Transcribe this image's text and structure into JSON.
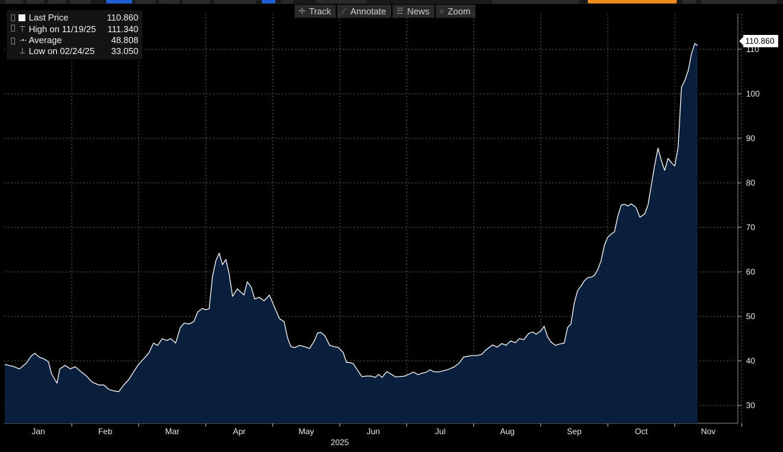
{
  "toolbar": {
    "track_label": "Track",
    "annotate_label": "Annotate",
    "news_label": "News",
    "zoom_label": "Zoom"
  },
  "legend": {
    "last_price_label": "Last Price",
    "last_price_value": "110.860",
    "high_label": "High on 11/19/25",
    "high_value": "111.340",
    "average_label": "Average",
    "average_value": "48.808",
    "low_label": "Low on 02/24/25",
    "low_value": "33.050"
  },
  "last_tag": "110.860",
  "colors": {
    "background": "#000000",
    "area_fill": "#0a1f3c",
    "line": "#ffffff",
    "grid": "#5a5a5a"
  },
  "chart_data": {
    "type": "area",
    "year_label": "2025",
    "x_tick_labels": [
      "Jan",
      "Feb",
      "Mar",
      "Apr",
      "May",
      "Jun",
      "Jul",
      "Aug",
      "Sep",
      "Oct",
      "Nov"
    ],
    "y_tick_labels": [
      "30",
      "40",
      "50",
      "60",
      "70",
      "80",
      "90",
      "100",
      "110"
    ],
    "y_ticks": [
      30,
      40,
      50,
      60,
      70,
      80,
      90,
      100,
      110
    ],
    "ylim": [
      26,
      118
    ],
    "x_range": [
      0,
      10.85
    ],
    "grid": true,
    "series": [
      {
        "name": "Last Price",
        "points": [
          [
            0.0,
            39.2
          ],
          [
            0.12,
            38.8
          ],
          [
            0.22,
            38.2
          ],
          [
            0.32,
            39.5
          ],
          [
            0.4,
            41.2
          ],
          [
            0.45,
            41.7
          ],
          [
            0.52,
            40.8
          ],
          [
            0.58,
            40.5
          ],
          [
            0.65,
            39.8
          ],
          [
            0.7,
            37.0
          ],
          [
            0.78,
            35.0
          ],
          [
            0.82,
            38.2
          ],
          [
            0.9,
            39.0
          ],
          [
            0.98,
            38.2
          ],
          [
            1.05,
            38.7
          ],
          [
            1.12,
            37.8
          ],
          [
            1.22,
            36.6
          ],
          [
            1.3,
            35.3
          ],
          [
            1.4,
            34.6
          ],
          [
            1.48,
            34.6
          ],
          [
            1.55,
            33.6
          ],
          [
            1.62,
            33.3
          ],
          [
            1.7,
            33.1
          ],
          [
            1.77,
            34.5
          ],
          [
            1.85,
            35.8
          ],
          [
            1.92,
            37.5
          ],
          [
            2.0,
            39.3
          ],
          [
            2.08,
            40.6
          ],
          [
            2.15,
            41.8
          ],
          [
            2.22,
            44.0
          ],
          [
            2.28,
            43.5
          ],
          [
            2.35,
            45.0
          ],
          [
            2.42,
            44.6
          ],
          [
            2.48,
            45.0
          ],
          [
            2.55,
            44.0
          ],
          [
            2.62,
            47.5
          ],
          [
            2.68,
            48.5
          ],
          [
            2.75,
            48.3
          ],
          [
            2.82,
            48.8
          ],
          [
            2.88,
            51.0
          ],
          [
            2.95,
            51.8
          ],
          [
            3.0,
            51.5
          ],
          [
            3.05,
            51.7
          ],
          [
            3.1,
            59.0
          ],
          [
            3.15,
            62.5
          ],
          [
            3.2,
            64.2
          ],
          [
            3.25,
            61.6
          ],
          [
            3.3,
            62.8
          ],
          [
            3.35,
            59.5
          ],
          [
            3.4,
            54.5
          ],
          [
            3.47,
            56.2
          ],
          [
            3.52,
            55.5
          ],
          [
            3.57,
            54.8
          ],
          [
            3.62,
            57.8
          ],
          [
            3.68,
            56.5
          ],
          [
            3.73,
            53.9
          ],
          [
            3.8,
            54.3
          ],
          [
            3.87,
            53.5
          ],
          [
            3.95,
            54.8
          ],
          [
            4.0,
            53.0
          ],
          [
            4.05,
            51.2
          ],
          [
            4.1,
            49.5
          ],
          [
            4.17,
            48.8
          ],
          [
            4.22,
            45.2
          ],
          [
            4.27,
            43.2
          ],
          [
            4.33,
            43.0
          ],
          [
            4.4,
            43.5
          ],
          [
            4.47,
            43.2
          ],
          [
            4.55,
            42.8
          ],
          [
            4.62,
            44.5
          ],
          [
            4.67,
            46.3
          ],
          [
            4.72,
            46.4
          ],
          [
            4.78,
            45.6
          ],
          [
            4.85,
            43.5
          ],
          [
            4.92,
            43.2
          ],
          [
            4.98,
            43.0
          ],
          [
            5.05,
            41.9
          ],
          [
            5.1,
            39.7
          ],
          [
            5.15,
            39.6
          ],
          [
            5.2,
            39.4
          ],
          [
            5.27,
            37.8
          ],
          [
            5.33,
            36.5
          ],
          [
            5.4,
            36.6
          ],
          [
            5.47,
            36.6
          ],
          [
            5.53,
            36.3
          ],
          [
            5.58,
            37.0
          ],
          [
            5.63,
            36.3
          ],
          [
            5.7,
            37.6
          ],
          [
            5.77,
            37.0
          ],
          [
            5.83,
            36.4
          ],
          [
            5.9,
            36.5
          ],
          [
            5.97,
            36.6
          ],
          [
            6.03,
            37.0
          ],
          [
            6.1,
            37.5
          ],
          [
            6.17,
            36.9
          ],
          [
            6.22,
            37.2
          ],
          [
            6.28,
            37.4
          ],
          [
            6.35,
            38.0
          ],
          [
            6.4,
            37.6
          ],
          [
            6.47,
            37.5
          ],
          [
            6.55,
            37.8
          ],
          [
            6.62,
            38.1
          ],
          [
            6.7,
            38.6
          ],
          [
            6.78,
            39.5
          ],
          [
            6.85,
            40.9
          ],
          [
            6.9,
            41.0
          ],
          [
            6.97,
            41.2
          ],
          [
            7.05,
            41.2
          ],
          [
            7.12,
            41.5
          ],
          [
            7.17,
            42.3
          ],
          [
            7.22,
            42.9
          ],
          [
            7.28,
            43.6
          ],
          [
            7.35,
            43.1
          ],
          [
            7.42,
            43.9
          ],
          [
            7.48,
            43.5
          ],
          [
            7.55,
            44.5
          ],
          [
            7.62,
            44.1
          ],
          [
            7.68,
            45.0
          ],
          [
            7.75,
            44.8
          ],
          [
            7.82,
            46.2
          ],
          [
            7.88,
            46.5
          ],
          [
            7.93,
            46.0
          ],
          [
            8.0,
            46.7
          ],
          [
            8.05,
            47.8
          ],
          [
            8.1,
            45.5
          ],
          [
            8.15,
            44.3
          ],
          [
            8.22,
            43.5
          ],
          [
            8.28,
            43.8
          ],
          [
            8.35,
            44.0
          ],
          [
            8.4,
            47.5
          ],
          [
            8.45,
            48.3
          ],
          [
            8.5,
            53.0
          ],
          [
            8.55,
            55.8
          ],
          [
            8.6,
            56.8
          ],
          [
            8.65,
            58.0
          ],
          [
            8.7,
            58.7
          ],
          [
            8.75,
            58.8
          ],
          [
            8.8,
            59.2
          ],
          [
            8.85,
            60.5
          ],
          [
            8.9,
            62.5
          ],
          [
            8.95,
            66.0
          ],
          [
            9.0,
            67.8
          ],
          [
            9.05,
            68.5
          ],
          [
            9.1,
            69.0
          ],
          [
            9.15,
            72.5
          ],
          [
            9.2,
            75.0
          ],
          [
            9.25,
            75.2
          ],
          [
            9.3,
            74.8
          ],
          [
            9.35,
            75.3
          ],
          [
            9.42,
            74.5
          ],
          [
            9.48,
            72.3
          ],
          [
            9.55,
            73.0
          ],
          [
            9.6,
            75.0
          ],
          [
            9.65,
            79.5
          ],
          [
            9.7,
            84.0
          ],
          [
            9.75,
            87.8
          ],
          [
            9.8,
            85.0
          ],
          [
            9.85,
            82.8
          ],
          [
            9.9,
            85.5
          ],
          [
            9.95,
            84.5
          ],
          [
            10.0,
            83.8
          ],
          [
            10.05,
            88.0
          ],
          [
            10.1,
            101.5
          ],
          [
            10.15,
            103.0
          ],
          [
            10.2,
            105.2
          ],
          [
            10.25,
            109.0
          ],
          [
            10.3,
            111.3
          ],
          [
            10.34,
            110.86
          ]
        ]
      }
    ]
  }
}
